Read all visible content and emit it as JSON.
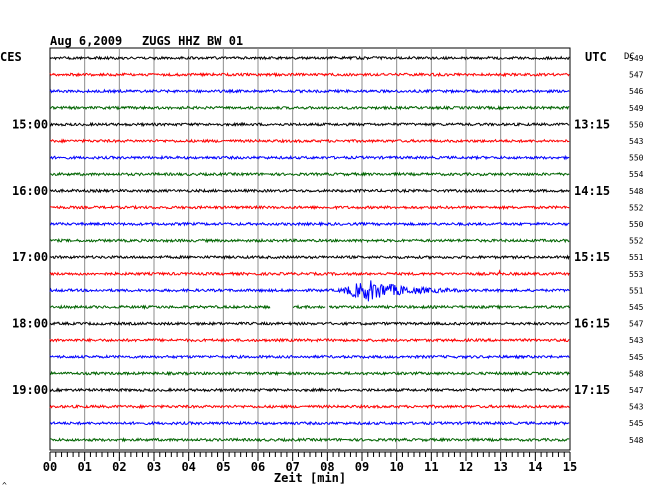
{
  "header": {
    "date": "Aug 6,2009",
    "station": "ZUGS HHZ BW 01",
    "left_tz": "CES",
    "right_tz": "UTC",
    "dc_label": "DC"
  },
  "chart_data": {
    "type": "line",
    "title": "Aug 6,2009   ZUGS HHZ BW 01",
    "xlabel": "Zeit [min]",
    "ylabel": "",
    "x_ticks": [
      "00",
      "01",
      "02",
      "03",
      "04",
      "05",
      "06",
      "07",
      "08",
      "09",
      "10",
      "11",
      "12",
      "13",
      "14",
      "15"
    ],
    "xlim": [
      0,
      15
    ],
    "grid": true,
    "trace_colors": [
      "#000000",
      "#ff0000",
      "#0000ff",
      "#006400"
    ],
    "left_time_labels": [
      {
        "row": 4,
        "text": "15:00"
      },
      {
        "row": 8,
        "text": "16:00"
      },
      {
        "row": 12,
        "text": "17:00"
      },
      {
        "row": 16,
        "text": "18:00"
      },
      {
        "row": 20,
        "text": "19:00"
      }
    ],
    "right_time_labels": [
      {
        "row": 4,
        "text": "13:15"
      },
      {
        "row": 8,
        "text": "14:15"
      },
      {
        "row": 12,
        "text": "15:15"
      },
      {
        "row": 16,
        "text": "16:15"
      },
      {
        "row": 20,
        "text": "17:15"
      }
    ],
    "dc_offsets": [
      549,
      547,
      546,
      549,
      550,
      543,
      550,
      554,
      548,
      552,
      550,
      552,
      551,
      553,
      551,
      545,
      547,
      543,
      545,
      548,
      547,
      543,
      545,
      548
    ],
    "events": [
      {
        "row": 14,
        "type": "earthquake",
        "start_min": 8.3,
        "peak_min": 9.2,
        "end_min": 11.8
      }
    ],
    "gaps": [
      {
        "row": 15,
        "from_min": 6.35,
        "to_min": 7.0
      },
      {
        "row": 15,
        "from_min": 7.95,
        "to_min": 8.05
      }
    ],
    "spikes": [
      {
        "row": 13,
        "at_min": 12.95
      }
    ],
    "footer_mark": "^"
  }
}
